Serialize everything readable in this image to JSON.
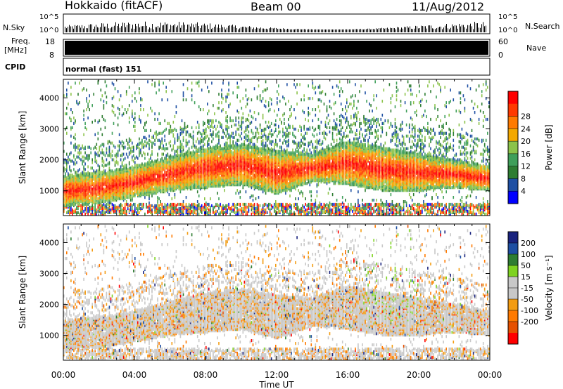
{
  "header": {
    "radar": "Hokkaido (fitACF)",
    "beam": "Beam 00",
    "date": "11/Aug/2012"
  },
  "top_strip": {
    "left_label": "N.Sky",
    "right_label": "N.Search",
    "left_ticks": [
      "10^5",
      "10^0"
    ],
    "right_ticks": [
      "10^5",
      "10^0"
    ]
  },
  "freq_strip": {
    "left_label_1": "Freq.",
    "left_label_2": "[MHz]",
    "right_label": "Nave",
    "left_ticks": [
      "18",
      "8"
    ],
    "right_ticks": [
      "60",
      "0"
    ]
  },
  "cpid": {
    "label": "CPID",
    "value": "normal (fast) 151"
  },
  "colors": {
    "power_scale": [
      "#0000ff",
      "#1e4fa3",
      "#2e7d32",
      "#3f9f5a",
      "#8bc34a",
      "#f3a800",
      "#ff7a00",
      "#ff3a00",
      "#ff0000"
    ],
    "velocity_scale": [
      "#1a237e",
      "#1e4fa3",
      "#2e7d32",
      "#7ed321",
      "#c8c8c8",
      "#c8c8c8",
      "#f39c12",
      "#ff7a00",
      "#e65100",
      "#ff0000"
    ]
  },
  "chart_data": [
    {
      "type": "heatmap",
      "name": "power",
      "ylabel": "Slant Range [km]",
      "xlabel": "Time UT",
      "x_ticks": [
        "00:00",
        "04:00",
        "08:00",
        "12:00",
        "16:00",
        "20:00",
        "00:00"
      ],
      "y_ticks": [
        "1000",
        "2000",
        "3000",
        "4000"
      ],
      "ylim": [
        200,
        4600
      ],
      "x_hours": [
        0,
        24
      ],
      "colorbar_label": "Power [dB]",
      "colorbar_ticks": [
        "4",
        "8",
        "12",
        "16",
        "20",
        "24",
        "28"
      ],
      "band": [
        {
          "h": 0,
          "lo": 500,
          "hi": 1500
        },
        {
          "h": 2,
          "lo": 600,
          "hi": 1600
        },
        {
          "h": 4,
          "lo": 800,
          "hi": 1800
        },
        {
          "h": 6,
          "lo": 1000,
          "hi": 2100
        },
        {
          "h": 8,
          "lo": 1100,
          "hi": 2400
        },
        {
          "h": 10,
          "lo": 1200,
          "hi": 2500
        },
        {
          "h": 12,
          "lo": 900,
          "hi": 2300
        },
        {
          "h": 14,
          "lo": 1300,
          "hi": 2200
        },
        {
          "h": 16,
          "lo": 1200,
          "hi": 2600
        },
        {
          "h": 18,
          "lo": 1000,
          "hi": 2400
        },
        {
          "h": 20,
          "lo": 1000,
          "hi": 2200
        },
        {
          "h": 22,
          "lo": 1100,
          "hi": 2000
        },
        {
          "h": 24,
          "lo": 1000,
          "hi": 1800
        }
      ]
    },
    {
      "type": "heatmap",
      "name": "velocity",
      "ylabel": "Slant Range [km]",
      "xlabel": "Time UT",
      "x_ticks": [
        "00:00",
        "04:00",
        "08:00",
        "12:00",
        "16:00",
        "20:00",
        "00:00"
      ],
      "y_ticks": [
        "1000",
        "2000",
        "3000",
        "4000"
      ],
      "ylim": [
        200,
        4600
      ],
      "x_hours": [
        0,
        24
      ],
      "colorbar_label": "Velocity [m s⁻¹]",
      "colorbar_ticks": [
        "200",
        "100",
        "50",
        "15",
        "-15",
        "-50",
        "-100",
        "-200"
      ]
    }
  ]
}
